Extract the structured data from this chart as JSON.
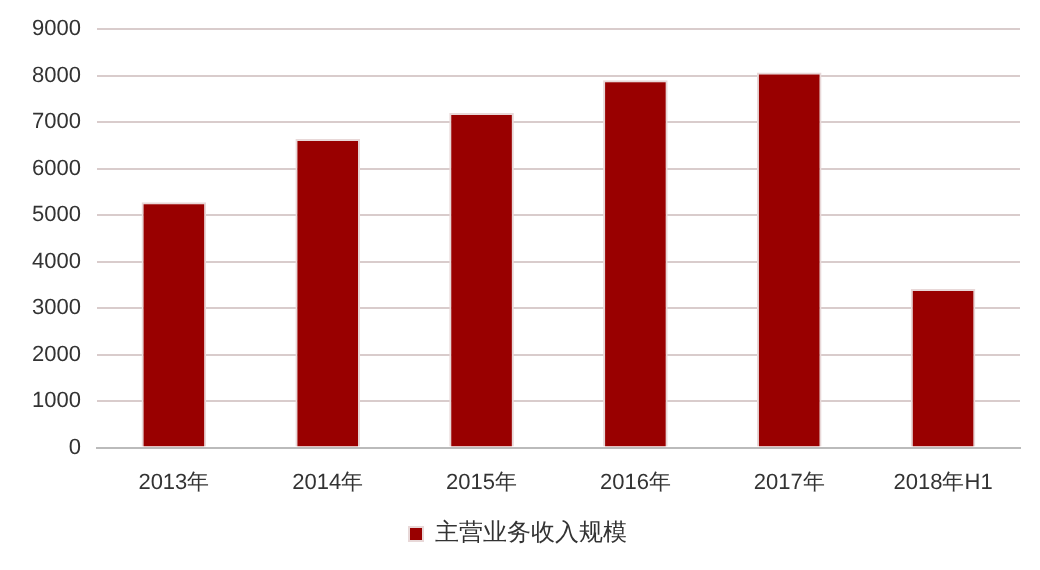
{
  "chart_data": {
    "type": "bar",
    "categories": [
      "2013年",
      "2014年",
      "2015年",
      "2016年",
      "2017年",
      "2018年H1"
    ],
    "series": [
      {
        "name": "主营业务收入规模",
        "color": "#990000",
        "values": [
          5280,
          6640,
          7200,
          7900,
          8070,
          3410
        ]
      }
    ],
    "ylim": [
      0,
      9000
    ],
    "yticks": [
      0,
      1000,
      2000,
      3000,
      4000,
      5000,
      6000,
      7000,
      8000,
      9000
    ],
    "grid": "y",
    "legend": "bottom"
  }
}
